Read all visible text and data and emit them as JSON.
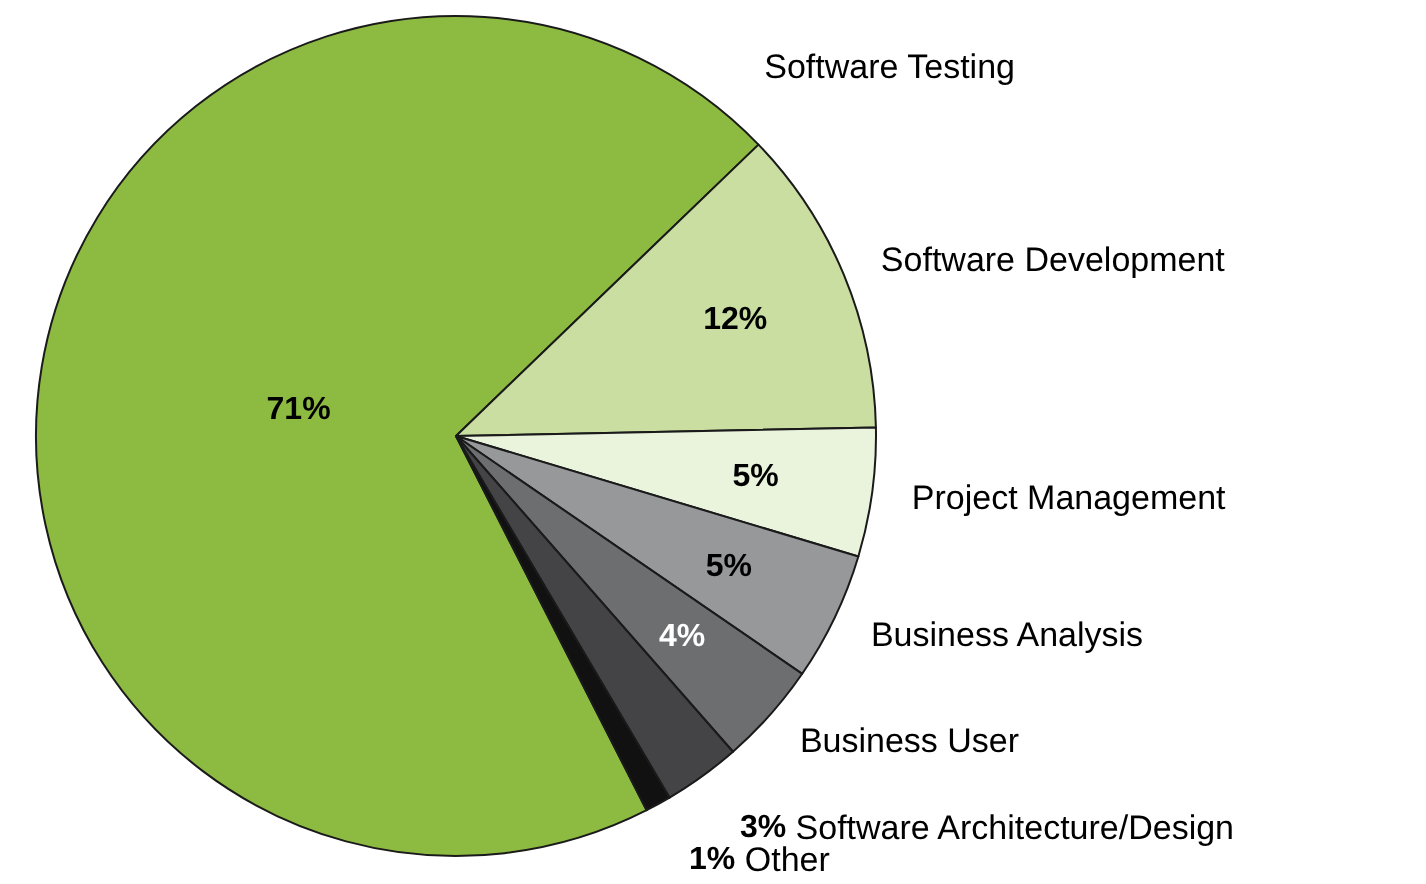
{
  "chart_data": {
    "type": "pie",
    "categories": [
      "Software Testing",
      "Software Development",
      "Project Management",
      "Business Analysis",
      "Business User",
      "Software Architecture/Design",
      "Other"
    ],
    "values": [
      71,
      12,
      5,
      5,
      4,
      3,
      1
    ],
    "value_labels": [
      "71%",
      "12%",
      "5%",
      "5%",
      "4%",
      "3%",
      "1%"
    ],
    "colors": [
      "#8dbb41",
      "#c9dea0",
      "#eaf3dc",
      "#97989a",
      "#6d6e70",
      "#444446",
      "#111111"
    ]
  }
}
